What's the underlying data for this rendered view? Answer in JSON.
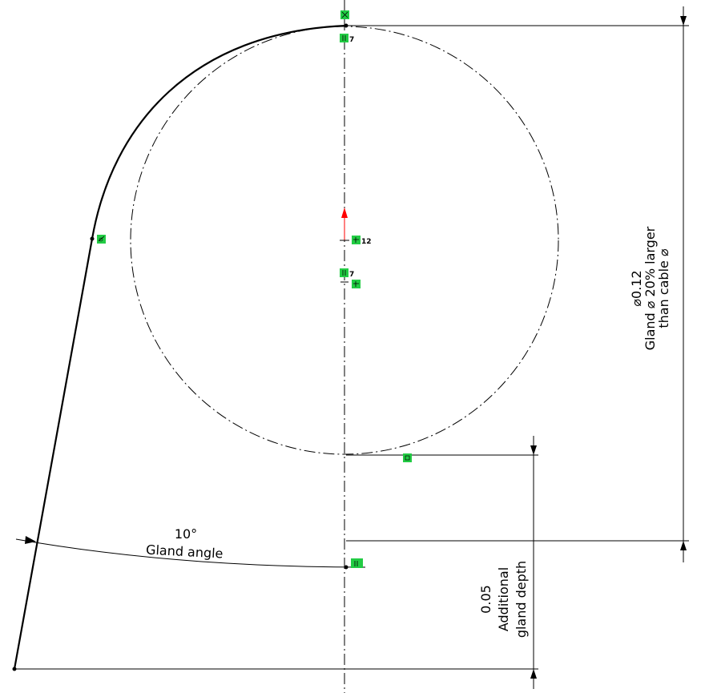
{
  "sketch": {
    "dim_diameter": {
      "value": "0.12",
      "symbol": "⌀",
      "line2": "Gland ⌀ 20% larger",
      "line3": "than cable ⌀"
    },
    "dim_depth": {
      "value": "0.05",
      "line2": "Additional",
      "line3": "gland depth"
    },
    "dim_angle": {
      "value": "10°",
      "label": "Gland angle"
    },
    "relations": {
      "coincident_top_label": "7",
      "center_label": "12",
      "coincident_mid_label": "7"
    },
    "colors": {
      "relation_badge": "#22cc44",
      "origin_arrow": "#ff0000",
      "line": "#000000"
    }
  }
}
